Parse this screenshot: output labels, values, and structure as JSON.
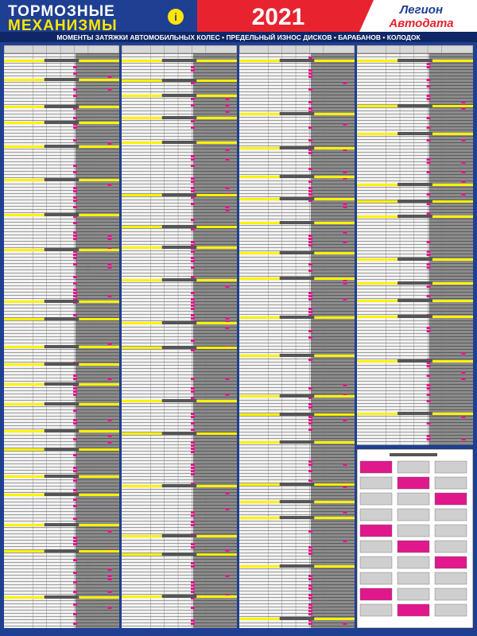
{
  "header": {
    "title_line1": "ТОРМОЗНЫЕ",
    "title_line2": "МЕХАНИЗМЫ",
    "year": "2021",
    "logo_top": "Легион",
    "logo_bottom": "Автодата"
  },
  "subtitle": "МОМЕНТЫ ЗАТЯЖКИ АВТОМОБИЛЬНЫХ КОЛЕС • ПРЕДЕЛЬНЫЙ ИЗНОС ДИСКОВ • БАРАБАНОВ • КОЛОДОК"
}
